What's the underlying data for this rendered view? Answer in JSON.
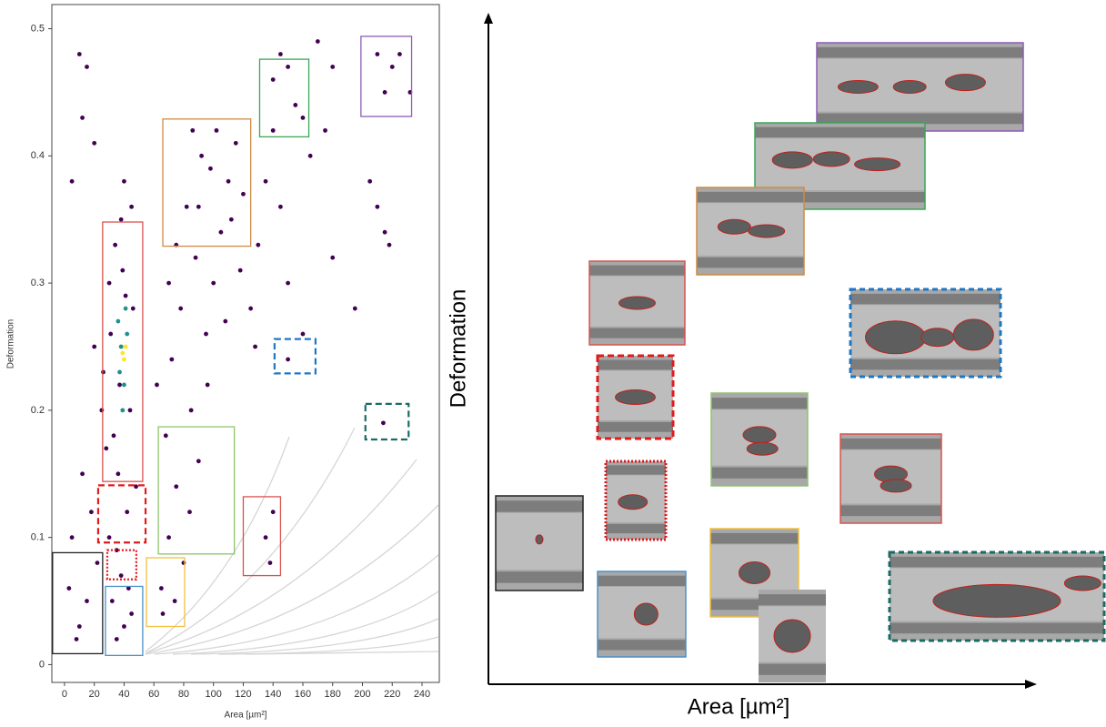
{
  "chart_data": {
    "type": "scatter",
    "x_label": "Area [µm²]",
    "y_label": "Deformation",
    "xlim": [
      -8.5,
      251.6
    ],
    "ylim": [
      -0.014,
      0.519
    ],
    "xticks": [
      0,
      20,
      40,
      60,
      80,
      100,
      120,
      140,
      160,
      180,
      200,
      220,
      240
    ],
    "yticks": [
      0,
      0.1,
      0.2,
      0.3,
      0.4,
      0.5
    ],
    "series": [
      {
        "color": "#440154",
        "x": [
          35,
          40,
          32,
          45,
          38,
          30,
          42,
          36,
          33,
          44,
          37,
          31,
          46,
          39,
          34,
          41,
          28,
          48,
          35,
          43,
          22,
          15,
          10,
          18,
          25,
          20,
          12,
          5,
          8,
          3,
          45,
          40,
          38,
          30,
          26,
          65,
          70,
          75,
          80,
          68,
          85,
          90,
          72,
          95,
          78,
          100,
          88,
          105,
          82,
          110,
          92,
          115,
          98,
          86,
          120,
          75,
          70,
          62,
          108,
          96,
          84,
          66,
          74,
          102,
          112,
          90,
          118,
          125,
          130,
          135,
          128,
          140,
          145,
          150,
          10,
          15,
          12,
          5,
          20,
          140,
          145,
          155,
          160,
          150,
          170,
          180,
          165,
          175,
          210,
          220,
          215,
          225,
          232,
          205,
          215,
          218,
          210,
          195,
          160,
          150,
          214,
          135,
          138,
          140,
          180
        ],
        "values": [
          0.02,
          0.03,
          0.05,
          0.04,
          0.07,
          0.1,
          0.12,
          0.15,
          0.18,
          0.2,
          0.22,
          0.26,
          0.28,
          0.31,
          0.33,
          0.29,
          0.17,
          0.14,
          0.09,
          0.06,
          0.08,
          0.05,
          0.03,
          0.12,
          0.2,
          0.25,
          0.15,
          0.1,
          0.02,
          0.06,
          0.36,
          0.38,
          0.35,
          0.3,
          0.23,
          0.06,
          0.1,
          0.14,
          0.08,
          0.18,
          0.2,
          0.16,
          0.24,
          0.26,
          0.28,
          0.3,
          0.32,
          0.34,
          0.36,
          0.38,
          0.4,
          0.41,
          0.39,
          0.42,
          0.37,
          0.33,
          0.3,
          0.22,
          0.27,
          0.22,
          0.12,
          0.04,
          0.05,
          0.42,
          0.35,
          0.36,
          0.31,
          0.28,
          0.33,
          0.38,
          0.25,
          0.42,
          0.36,
          0.3,
          0.48,
          0.47,
          0.43,
          0.38,
          0.41,
          0.46,
          0.48,
          0.44,
          0.43,
          0.47,
          0.49,
          0.47,
          0.4,
          0.42,
          0.48,
          0.47,
          0.45,
          0.48,
          0.45,
          0.38,
          0.34,
          0.33,
          0.36,
          0.28,
          0.26,
          0.24,
          0.19,
          0.1,
          0.08,
          0.12,
          0.32
        ]
      },
      {
        "color": "#21918c",
        "x": [
          38,
          40,
          36,
          42,
          39,
          41,
          37
        ],
        "values": [
          0.25,
          0.22,
          0.27,
          0.26,
          0.2,
          0.28,
          0.23
        ]
      },
      {
        "color": "#fde725",
        "x": [
          39,
          40,
          41
        ],
        "values": [
          0.245,
          0.24,
          0.25
        ]
      }
    ],
    "gates": [
      {
        "x": [
          -8,
          25.6
        ],
        "y": [
          0.0086,
          0.088
        ],
        "color": "#222222",
        "style": "solid"
      },
      {
        "x": [
          27.5,
          52.5
        ],
        "y": [
          0.0072,
          0.0615
        ],
        "color": "#4a90c8",
        "style": "solid"
      },
      {
        "x": [
          28.7,
          48.2
        ],
        "y": [
          0.067,
          0.09
        ],
        "color": "#e31a1c",
        "style": "dotted"
      },
      {
        "x": [
          55,
          80.6
        ],
        "y": [
          0.03,
          0.084
        ],
        "color": "#f0c040",
        "style": "solid"
      },
      {
        "x": [
          22.6,
          54.4
        ],
        "y": [
          0.096,
          0.141
        ],
        "color": "#e31a1c",
        "style": "dashed"
      },
      {
        "x": [
          25.6,
          52.5
        ],
        "y": [
          0.144,
          0.348
        ],
        "color": "#d9534f",
        "style": "solid"
      },
      {
        "x": [
          63,
          114
        ],
        "y": [
          0.087,
          0.187
        ],
        "color": "#8fc46a",
        "style": "solid"
      },
      {
        "x": [
          66,
          125
        ],
        "y": [
          0.329,
          0.429
        ],
        "color": "#d08a45",
        "style": "solid"
      },
      {
        "x": [
          131,
          164
        ],
        "y": [
          0.415,
          0.476
        ],
        "color": "#3aa655",
        "style": "solid"
      },
      {
        "x": [
          199,
          233
        ],
        "y": [
          0.431,
          0.494
        ],
        "color": "#8e5bb5",
        "style": "solid"
      },
      {
        "x": [
          141,
          168.5
        ],
        "y": [
          0.229,
          0.256
        ],
        "color": "#1f77c4",
        "style": "dashed"
      },
      {
        "x": [
          202,
          231
        ],
        "y": [
          0.177,
          0.205
        ],
        "color": "#1a6b64",
        "style": "dashed"
      },
      {
        "x": [
          120,
          145
        ],
        "y": [
          0.07,
          0.132
        ],
        "color": "#d9534f",
        "style": "solid"
      }
    ]
  }
}
